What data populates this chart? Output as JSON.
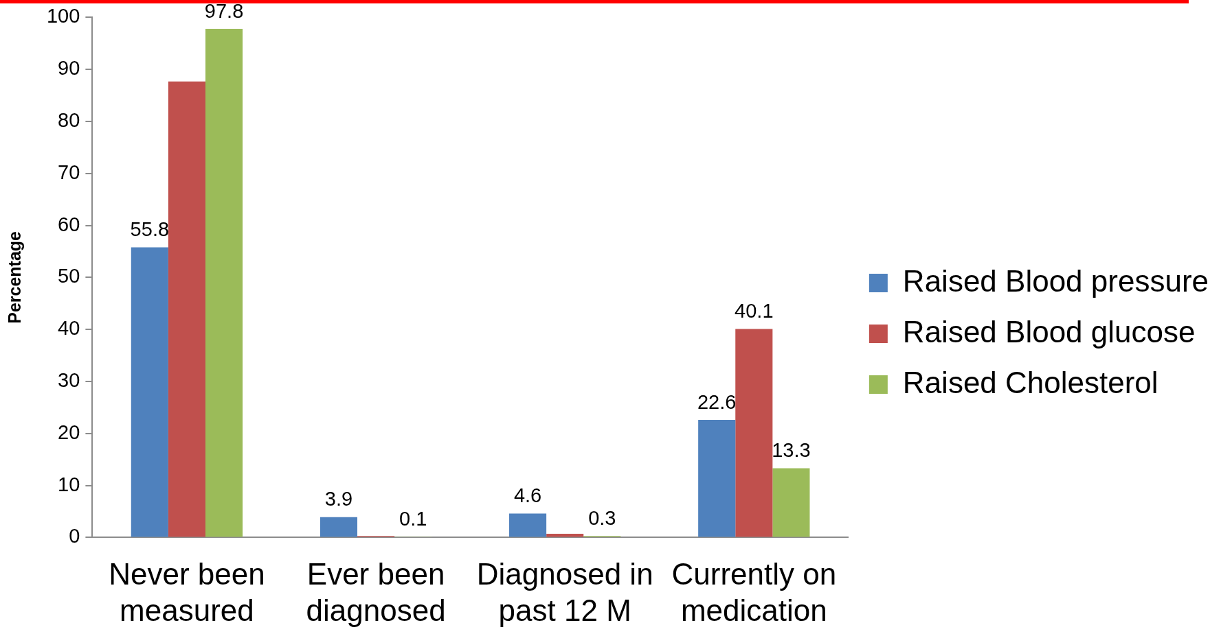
{
  "chart_data": {
    "type": "bar",
    "ylabel": "Percentage",
    "categories": [
      "Never been measured",
      "Ever been diagnosed",
      "Diagnosed in past 12 M",
      "Currently on medication"
    ],
    "series": [
      {
        "name": "Raised Blood pressure",
        "color": "#4f81bd",
        "values": [
          55.8,
          3.9,
          4.6,
          22.6
        ],
        "value_labels": [
          "55.8",
          "3.9",
          "4.6",
          "22.6"
        ]
      },
      {
        "name": "Raised Blood glucose",
        "color": "#c0504d",
        "values": [
          87.7,
          0.3,
          0.7,
          40.1
        ],
        "value_labels": [
          null,
          null,
          null,
          "40.1"
        ]
      },
      {
        "name": "Raised Cholesterol",
        "color": "#9bbb59",
        "values": [
          97.8,
          0.1,
          0.3,
          13.3
        ],
        "value_labels": [
          "97.8",
          "0.1",
          "0.3",
          "13.3"
        ]
      }
    ],
    "ylim": [
      0,
      100
    ],
    "yticks": [
      0,
      10,
      20,
      30,
      40,
      50,
      60,
      70,
      80,
      90,
      100
    ],
    "grid": false,
    "legend": "right"
  }
}
